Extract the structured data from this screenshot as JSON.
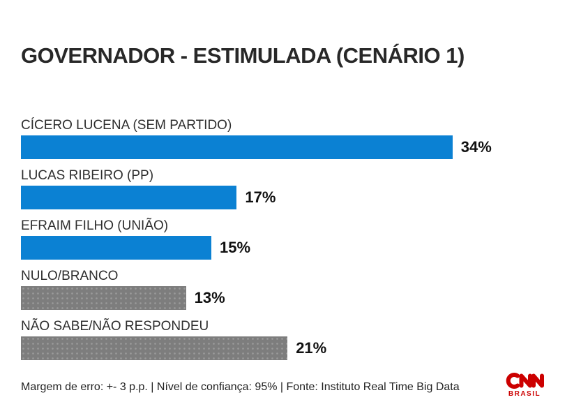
{
  "title": "GOVERNADOR - ESTIMULADA (CENÁRIO 1)",
  "footer": {
    "note": "Margem de erro: +- 3 p.p. | Nível de confiança: 95% | Fonte: Instituto Real Time Big Data"
  },
  "branding": {
    "network": "CNN",
    "region": "BRASIL",
    "logo_color": "#cc0000"
  },
  "colors": {
    "bar_blue": "#0b81d3",
    "bar_gray": "#7d7d7d",
    "title_text": "#282828",
    "label_text": "#2e2e2e",
    "value_text": "#111111"
  },
  "chart_data": {
    "type": "bar",
    "orientation": "horizontal",
    "title": "GOVERNADOR - ESTIMULADA (CENÁRIO 1)",
    "categories": [
      "CÍCERO LUCENA (SEM PARTIDO)",
      "LUCAS RIBEIRO (PP)",
      "EFRAIM FILHO (UNIÃO)",
      "NULO/BRANCO",
      "NÃO SABE/NÃO RESPONDEU"
    ],
    "values": [
      34,
      17,
      15,
      13,
      21
    ],
    "value_labels": [
      "34%",
      "17%",
      "15%",
      "13%",
      "21%"
    ],
    "bar_variants": [
      "blue",
      "blue",
      "blue",
      "gray",
      "gray"
    ],
    "xlim": [
      0,
      42
    ],
    "grid": false,
    "legend": null,
    "margin_of_error": "+- 3 p.p.",
    "confidence_level": "95%",
    "source": "Instituto Real Time Big Data"
  }
}
